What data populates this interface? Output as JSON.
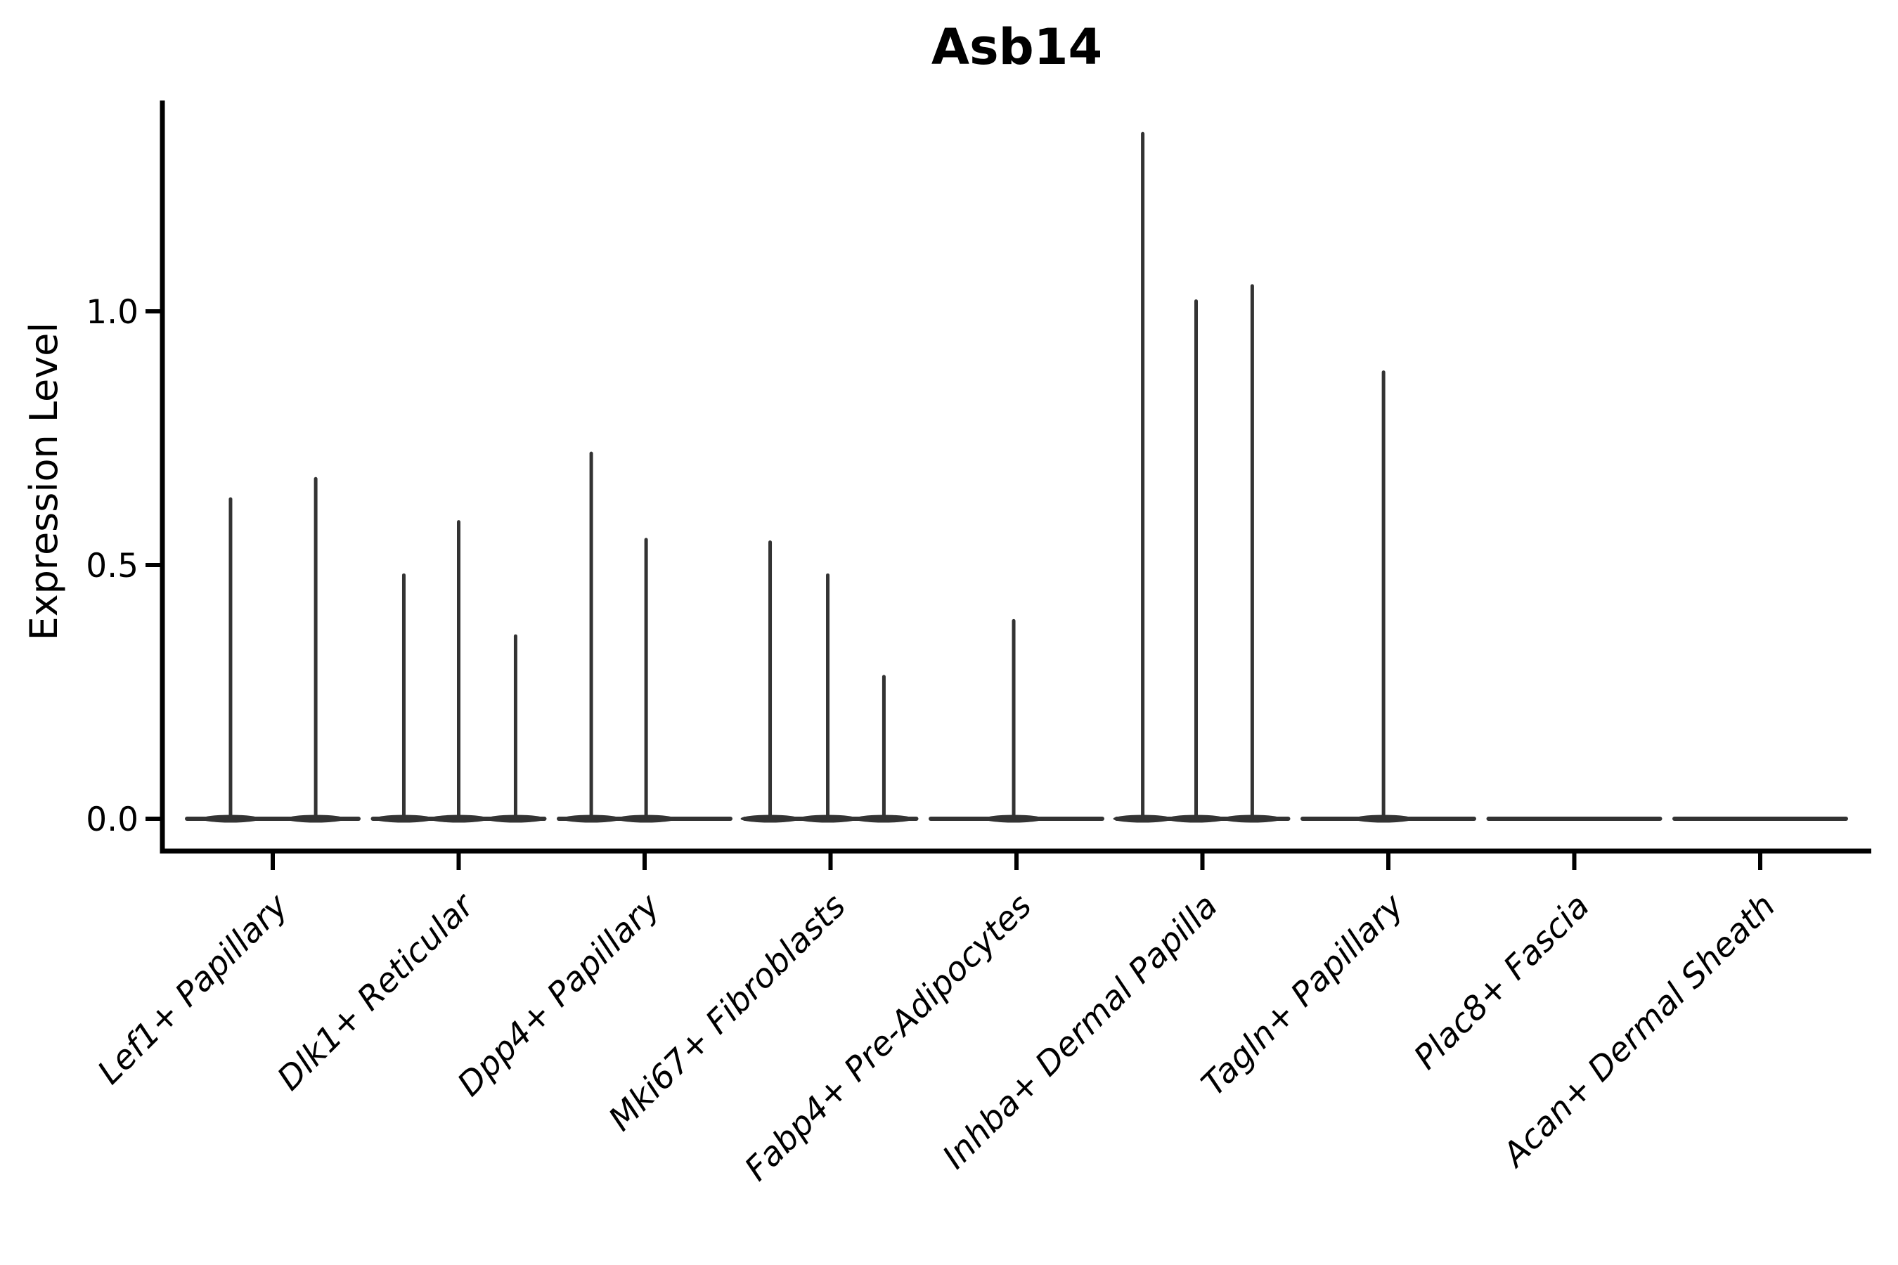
{
  "title": "Asb14",
  "ylabel": "Expression Level",
  "chart_data": {
    "type": "violin",
    "title": "Asb14",
    "xlabel": "",
    "ylabel": "Expression Level",
    "ylim": [
      -0.06,
      1.41
    ],
    "yticks": [
      0.0,
      0.5,
      1.0
    ],
    "ytick_labels": [
      "0.0",
      "0.5",
      "1.0"
    ],
    "grid": false,
    "legend": "none",
    "categories": [
      "Lef1+ Papillary",
      "Dlk1+ Reticular",
      "Dpp4+ Papillary",
      "Mki67+ Fibroblasts",
      "Fabp4+ Pre-Adipocytes",
      "Inhba+ Dermal Papilla",
      "Tagln+ Papillary",
      "Plac8+ Fascia",
      "Acan+ Dermal Sheath"
    ],
    "groups": [
      {
        "category": "Lef1+ Papillary",
        "spikes": [
          {
            "offset": -0.227,
            "value": 0.63
          },
          {
            "offset": 0.231,
            "value": 0.67
          }
        ]
      },
      {
        "category": "Dlk1+ Reticular",
        "spikes": [
          {
            "offset": -0.295,
            "value": 0.48
          },
          {
            "offset": 0.0,
            "value": 0.585
          },
          {
            "offset": 0.306,
            "value": 0.36
          }
        ]
      },
      {
        "category": "Dpp4+ Papillary",
        "spikes": [
          {
            "offset": -0.287,
            "value": 0.72
          },
          {
            "offset": 0.008,
            "value": 0.55
          }
        ]
      },
      {
        "category": "Mki67+ Fibroblasts",
        "spikes": [
          {
            "offset": -0.325,
            "value": 0.545
          },
          {
            "offset": -0.015,
            "value": 0.48
          },
          {
            "offset": 0.287,
            "value": 0.28
          }
        ]
      },
      {
        "category": "Fabp4+ Pre-Adipocytes",
        "spikes": [
          {
            "offset": -0.015,
            "value": 0.39
          }
        ]
      },
      {
        "category": "Inhba+ Dermal Papilla",
        "spikes": [
          {
            "offset": -0.321,
            "value": 1.35
          },
          {
            "offset": -0.034,
            "value": 1.02
          },
          {
            "offset": 0.268,
            "value": 1.05
          }
        ]
      },
      {
        "category": "Tagln+ Papillary",
        "spikes": [
          {
            "offset": -0.026,
            "value": 0.88
          }
        ]
      },
      {
        "category": "Plac8+ Fascia",
        "spikes": []
      },
      {
        "category": "Acan+ Dermal Sheath",
        "spikes": []
      }
    ],
    "colors": {
      "violin": "#333333",
      "axis": "#000000",
      "text": "#000000",
      "background": "#ffffff"
    }
  }
}
